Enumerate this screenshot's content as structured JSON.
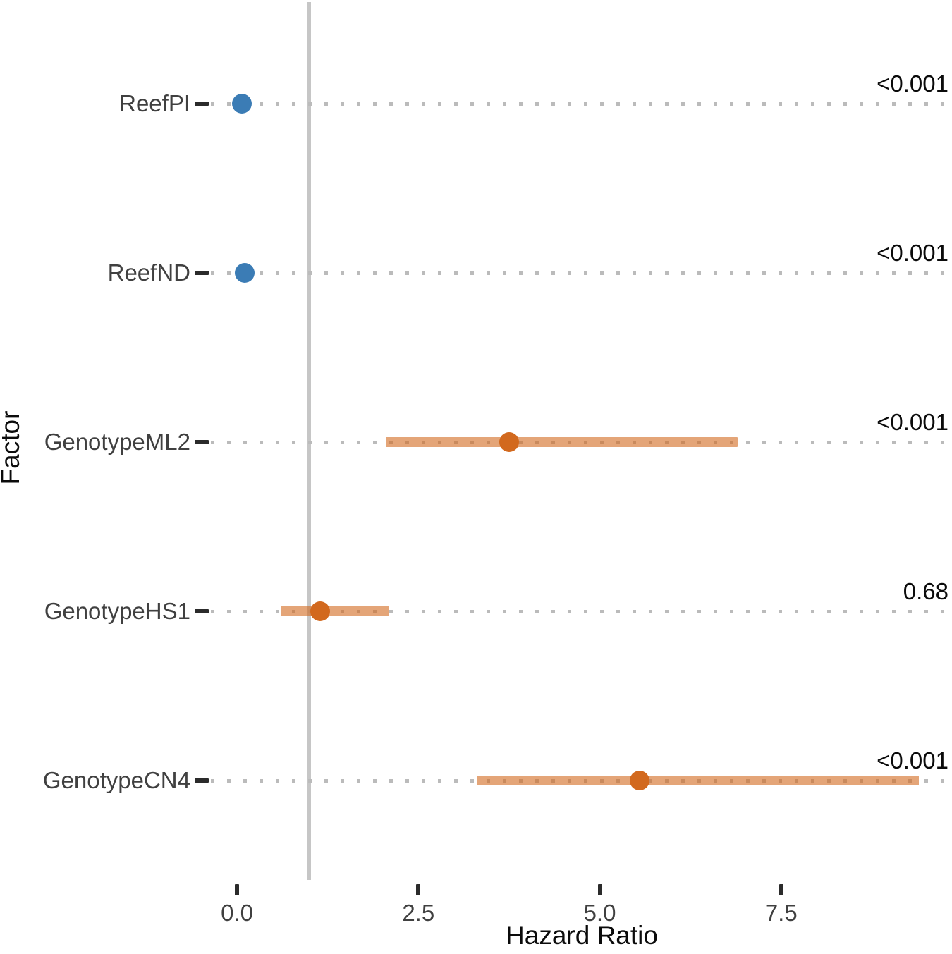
{
  "chart_data": {
    "type": "scatter",
    "subtype": "forest-plot",
    "title": "",
    "xlabel": "Hazard Ratio",
    "ylabel": "Factor",
    "xlim": [
      -0.35,
      9.85
    ],
    "x_ticks": [
      0.0,
      2.5,
      5.0,
      7.5
    ],
    "x_tick_labels": [
      "0.0",
      "2.5",
      "5.0",
      "7.5"
    ],
    "reference_line_x": 1.0,
    "grid": "dotted-horizontal-per-row",
    "legend": "none",
    "rows": [
      {
        "label": "ReefPI",
        "hr": 0.07,
        "ci_low": null,
        "ci_high": null,
        "p_value": "<0.001",
        "group": "reef"
      },
      {
        "label": "ReefND",
        "hr": 0.11,
        "ci_low": null,
        "ci_high": null,
        "p_value": "<0.001",
        "group": "reef"
      },
      {
        "label": "GenotypeML2",
        "hr": 3.75,
        "ci_low": 2.05,
        "ci_high": 6.9,
        "p_value": "<0.001",
        "group": "genotype"
      },
      {
        "label": "GenotypeHS1",
        "hr": 1.15,
        "ci_low": 0.6,
        "ci_high": 2.1,
        "p_value": "0.68",
        "group": "genotype"
      },
      {
        "label": "GenotypeCN4",
        "hr": 5.55,
        "ci_low": 3.3,
        "ci_high": 9.4,
        "p_value": "<0.001",
        "group": "genotype"
      }
    ],
    "colors": {
      "reef_point": "#3B7CB5",
      "genotype_point": "#D2691E",
      "ci_bar_rgba": "rgba(210,105,30,0.6)",
      "gridline": "#BBBBBB",
      "reference_line": "#C6C6C6",
      "axis_tick": "#2B2B2B",
      "tick_label": "#404040",
      "axis_title": "#0B0B0B"
    }
  }
}
